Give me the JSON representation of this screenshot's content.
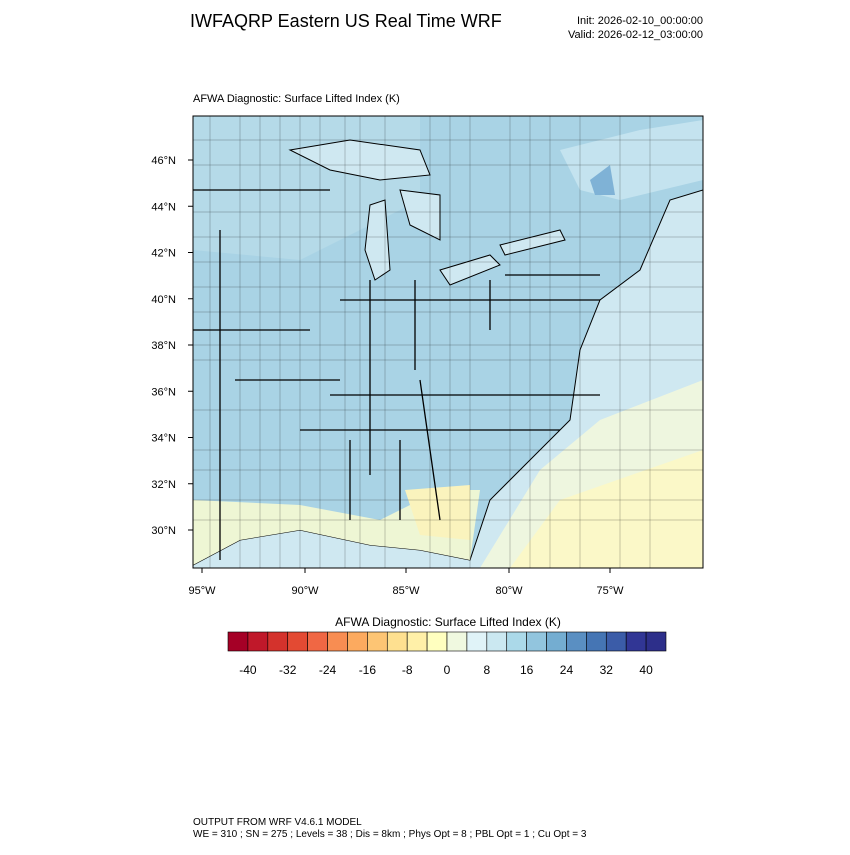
{
  "header": {
    "title": "IWFAQRP Eastern US Real Time WRF",
    "init": "Init: 2026-02-10_00:00:00",
    "valid": "Valid: 2026-02-12_03:00:00"
  },
  "map": {
    "subtitle": "AFWA Diagnostic: Surface Lifted Index   (K)",
    "lat_labels": [
      "46°N",
      "44°N",
      "42°N",
      "40°N",
      "38°N",
      "36°N",
      "34°N",
      "32°N",
      "30°N"
    ],
    "lon_labels": [
      "95°W",
      "90°W",
      "85°W",
      "80°W",
      "75°W"
    ]
  },
  "colorbar": {
    "title": "AFWA Diagnostic: Surface Lifted Index  (K)",
    "labels": [
      "-40",
      "-32",
      "-24",
      "-16",
      "-8",
      "0",
      "8",
      "16",
      "24",
      "32",
      "40"
    ],
    "colors": [
      "#a50026",
      "#c0182a",
      "#d4322c",
      "#e34a33",
      "#f06744",
      "#f88d52",
      "#fcaa5f",
      "#fdc574",
      "#fee090",
      "#fff0a8",
      "#ffffbf",
      "#f0f9e0",
      "#e0f3f8",
      "#cbe8f1",
      "#abd9e9",
      "#92c5de",
      "#74add1",
      "#5a8fc2",
      "#4575b4",
      "#3b5ca8",
      "#313695",
      "#2d2f8a"
    ]
  },
  "footer": {
    "line1": "OUTPUT FROM WRF V4.6.1 MODEL",
    "line2": "WE = 310 ; SN = 275 ; Levels = 38 ; Dis = 8km ; Phys Opt = 8 ; PBL Opt = 1 ; Cu Opt = 3"
  }
}
